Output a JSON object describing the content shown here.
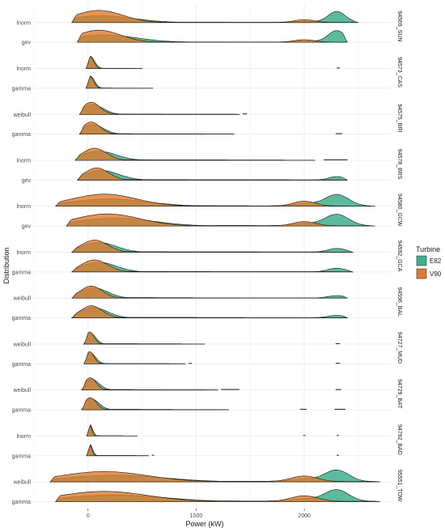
{
  "chart_data": {
    "type": "area",
    "subtype": "faceted ridgeline density",
    "xlabel": "Power (kW)",
    "ylabel": "Distribution",
    "xlim": [
      -500,
      2800
    ],
    "x_ticks": [
      0,
      1000,
      2000
    ],
    "x_tick_labels": [
      "0",
      "1000",
      "2000"
    ],
    "grid": true,
    "legend": {
      "title": "Turbine",
      "position": "right",
      "entries": [
        {
          "label": "E82",
          "color": "#3FAF8D"
        },
        {
          "label": "V90",
          "color": "#DF7B2C"
        }
      ]
    },
    "panels": [
      {
        "label": "94569_SUN",
        "rows": [
          {
            "dist": "lnorm",
            "range": [
              -150,
              2500
            ],
            "tail_end": 2200,
            "tail_level": 0.05,
            "E82": {
              "main": [
                120,
                300,
                0.55
              ],
              "second": [
                2000,
                100,
                0.1
              ],
              "peak2": [
                2300,
                80,
                0.9
              ]
            },
            "V90": {
              "main": [
                100,
                220,
                1.0
              ],
              "second": [
                2000,
                90,
                0.22
              ],
              "peak2": null
            }
          },
          {
            "dist": "gev",
            "range": [
              -100,
              2400
            ],
            "tail_end": 2200,
            "tail_level": 0.05,
            "E82": {
              "main": [
                150,
                300,
                0.6
              ],
              "second": [
                2000,
                100,
                0.1
              ],
              "peak2": [
                2300,
                80,
                0.95
              ]
            },
            "V90": {
              "main": [
                100,
                200,
                1.0
              ],
              "second": [
                2000,
                90,
                0.2
              ],
              "peak2": null
            }
          }
        ]
      },
      {
        "label": "94573_CAS",
        "rows": [
          {
            "dist": "lnorm",
            "range": [
              -20,
              500
            ],
            "tail_end": 500,
            "tail_level": 0.02,
            "E82": {
              "main": [
                20,
                40,
                1.0
              ],
              "second": null,
              "peak2": null
            },
            "V90": {
              "main": [
                15,
                35,
                1.0
              ],
              "second": null,
              "peak2": null
            },
            "segments": [
              [
                2300,
                2330
              ]
            ]
          },
          {
            "dist": "gamma",
            "range": [
              -20,
              600
            ],
            "tail_end": 600,
            "tail_level": 0.02,
            "E82": {
              "main": [
                20,
                40,
                1.0
              ],
              "second": null,
              "peak2": null
            },
            "V90": {
              "main": [
                15,
                35,
                1.0
              ],
              "second": null,
              "peak2": null
            }
          }
        ]
      },
      {
        "label": "94575_BRI",
        "rows": [
          {
            "dist": "weibull",
            "range": [
              -80,
              1400
            ],
            "tail_end": 1400,
            "tail_level": 0.04,
            "E82": {
              "main": [
                40,
                100,
                0.8
              ],
              "second": null,
              "peak2": null
            },
            "V90": {
              "main": [
                30,
                80,
                1.0
              ],
              "second": null,
              "peak2": null
            },
            "segments": [
              [
                1430,
                1470
              ]
            ]
          },
          {
            "dist": "gamma",
            "range": [
              -80,
              1350
            ],
            "tail_end": 1350,
            "tail_level": 0.04,
            "E82": {
              "main": [
                40,
                100,
                0.8
              ],
              "second": null,
              "peak2": null
            },
            "V90": {
              "main": [
                30,
                80,
                1.0
              ],
              "second": null,
              "peak2": null
            },
            "segments": [
              [
                2290,
                2350
              ]
            ]
          }
        ]
      },
      {
        "label": "94578_BRS",
        "rows": [
          {
            "dist": "lnorm",
            "range": [
              -120,
              2100
            ],
            "tail_end": 2100,
            "tail_level": 0.05,
            "E82": {
              "main": [
                100,
                160,
                0.75
              ],
              "second": null,
              "peak2": [
                2300,
                70,
                0.3
              ]
            },
            "V90": {
              "main": [
                60,
                110,
                1.0
              ],
              "second": null,
              "peak2": null
            },
            "segments": [
              [
                2180,
                2400
              ]
            ]
          },
          {
            "dist": "gev",
            "range": [
              -100,
              2400
            ],
            "tail_end": 2100,
            "tail_level": 0.05,
            "E82": {
              "main": [
                120,
                160,
                0.8
              ],
              "second": null,
              "peak2": [
                2300,
                70,
                0.28
              ]
            },
            "V90": {
              "main": [
                80,
                110,
                1.0
              ],
              "second": null,
              "peak2": null
            }
          }
        ]
      },
      {
        "label": "94580_GCW",
        "rows": [
          {
            "dist": "lnorm",
            "range": [
              -300,
              2650
            ],
            "tail_end": 2300,
            "tail_level": 0.07,
            "E82": {
              "main": [
                200,
                350,
                0.6
              ],
              "second": [
                2000,
                110,
                0.2
              ],
              "peak2": [
                2300,
                110,
                0.95
              ]
            },
            "V90": {
              "main": [
                150,
                300,
                1.0
              ],
              "second": [
                2000,
                100,
                0.4
              ],
              "peak2": null
            }
          },
          {
            "dist": "gev",
            "range": [
              -200,
              2650
            ],
            "tail_end": 2300,
            "tail_level": 0.07,
            "E82": {
              "main": [
                250,
                350,
                0.65
              ],
              "second": [
                2000,
                110,
                0.2
              ],
              "peak2": [
                2300,
                110,
                0.95
              ]
            },
            "V90": {
              "main": [
                180,
                300,
                1.0
              ],
              "second": [
                2000,
                100,
                0.35
              ],
              "peak2": null
            }
          }
        ]
      },
      {
        "label": "94592_GCA",
        "rows": [
          {
            "dist": "lnorm",
            "range": [
              -150,
              2450
            ],
            "tail_end": 2200,
            "tail_level": 0.05,
            "E82": {
              "main": [
                100,
                160,
                0.8
              ],
              "second": null,
              "peak2": [
                2300,
                80,
                0.3
              ]
            },
            "V90": {
              "main": [
                60,
                120,
                1.0
              ],
              "second": null,
              "peak2": null
            }
          },
          {
            "dist": "gamma",
            "range": [
              -150,
              2450
            ],
            "tail_end": 2200,
            "tail_level": 0.05,
            "E82": {
              "main": [
                100,
                160,
                0.8
              ],
              "second": null,
              "peak2": [
                2300,
                80,
                0.3
              ]
            },
            "V90": {
              "main": [
                60,
                120,
                1.0
              ],
              "second": null,
              "peak2": null
            }
          }
        ]
      },
      {
        "label": "94596_BAL",
        "rows": [
          {
            "dist": "weibull",
            "range": [
              -150,
              2400
            ],
            "tail_end": 2200,
            "tail_level": 0.05,
            "E82": {
              "main": [
                50,
                130,
                0.85
              ],
              "second": null,
              "peak2": [
                2300,
                80,
                0.2
              ]
            },
            "V90": {
              "main": [
                30,
                100,
                1.0
              ],
              "second": null,
              "peak2": null
            }
          },
          {
            "dist": "gamma",
            "range": [
              -150,
              2400
            ],
            "tail_end": 2200,
            "tail_level": 0.05,
            "E82": {
              "main": [
                50,
                130,
                0.85
              ],
              "second": null,
              "peak2": [
                2300,
                80,
                0.2
              ]
            },
            "V90": {
              "main": [
                30,
                100,
                1.0
              ],
              "second": null,
              "peak2": null
            }
          }
        ]
      },
      {
        "label": "94727_MUD",
        "rows": [
          {
            "dist": "weibull",
            "range": [
              -40,
              1080
            ],
            "tail_end": 1080,
            "tail_level": 0.03,
            "E82": {
              "main": [
                20,
                50,
                0.9
              ],
              "second": null,
              "peak2": null
            },
            "V90": {
              "main": [
                15,
                40,
                1.0
              ],
              "second": null,
              "peak2": null
            },
            "segments": [
              [
                2290,
                2330
              ]
            ]
          },
          {
            "dist": "gamma",
            "range": [
              -40,
              900
            ],
            "tail_end": 900,
            "tail_level": 0.03,
            "E82": {
              "main": [
                20,
                50,
                0.9
              ],
              "second": null,
              "peak2": null
            },
            "V90": {
              "main": [
                15,
                40,
                1.0
              ],
              "second": null,
              "peak2": null
            },
            "segments": [
              [
                930,
                960
              ],
              [
                2290,
                2330
              ]
            ]
          }
        ]
      },
      {
        "label": "94729_BAT",
        "rows": [
          {
            "dist": "weibull",
            "range": [
              -60,
              1200
            ],
            "tail_end": 1200,
            "tail_level": 0.04,
            "E82": {
              "main": [
                30,
                70,
                0.9
              ],
              "second": null,
              "peak2": null
            },
            "V90": {
              "main": [
                20,
                55,
                1.0
              ],
              "second": null,
              "peak2": null
            },
            "segments": [
              [
                1230,
                1400
              ],
              [
                2290,
                2340
              ]
            ]
          },
          {
            "dist": "gamma",
            "range": [
              -60,
              1300
            ],
            "tail_end": 1300,
            "tail_level": 0.04,
            "E82": {
              "main": [
                30,
                70,
                0.9
              ],
              "second": null,
              "peak2": null
            },
            "V90": {
              "main": [
                20,
                55,
                1.0
              ],
              "second": null,
              "peak2": null
            },
            "segments": [
              [
                1960,
                2020
              ],
              [
                2280,
                2380
              ]
            ]
          }
        ]
      },
      {
        "label": "94792_BAD",
        "rows": [
          {
            "dist": "lnorm",
            "range": [
              -15,
              450
            ],
            "tail_end": 450,
            "tail_level": 0.02,
            "E82": {
              "main": [
                15,
                25,
                1.0
              ],
              "second": null,
              "peak2": null
            },
            "V90": {
              "main": [
                10,
                22,
                1.0
              ],
              "second": null,
              "peak2": null
            },
            "segments": [
              [
                1990,
                2010
              ],
              [
                2300,
                2320
              ]
            ]
          },
          {
            "dist": "gamma",
            "range": [
              -15,
              560
            ],
            "tail_end": 560,
            "tail_level": 0.02,
            "E82": {
              "main": [
                15,
                25,
                1.0
              ],
              "second": null,
              "peak2": null
            },
            "V90": {
              "main": [
                10,
                22,
                1.0
              ],
              "second": null,
              "peak2": null
            },
            "segments": [
              [
                590,
                610
              ],
              [
                2300,
                2320
              ]
            ]
          }
        ]
      },
      {
        "label": "95551_TOW",
        "rows": [
          {
            "dist": "weibull",
            "range": [
              -350,
              2700
            ],
            "tail_end": 2300,
            "tail_level": 0.1,
            "E82": {
              "main": [
                250,
                450,
                0.55
              ],
              "second": [
                2000,
                130,
                0.2
              ],
              "peak2": [
                2300,
                110,
                0.95
              ]
            },
            "V90": {
              "main": [
                150,
                400,
                0.85
              ],
              "second": [
                2000,
                120,
                0.45
              ],
              "peak2": null
            }
          },
          {
            "dist": "gamma",
            "range": [
              -300,
              2700
            ],
            "tail_end": 2300,
            "tail_level": 0.1,
            "E82": {
              "main": [
                250,
                450,
                0.55
              ],
              "second": [
                2000,
                130,
                0.2
              ],
              "peak2": [
                2300,
                110,
                0.95
              ]
            },
            "V90": {
              "main": [
                150,
                400,
                0.85
              ],
              "second": [
                2000,
                120,
                0.45
              ],
              "peak2": null
            }
          }
        ]
      }
    ]
  }
}
